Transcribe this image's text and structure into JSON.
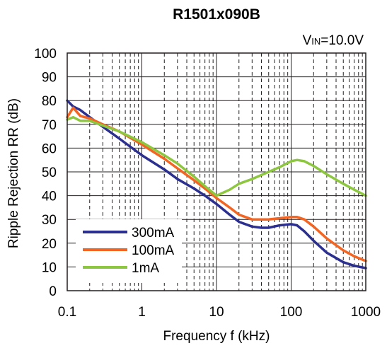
{
  "chart_data": {
    "type": "line",
    "title": "R1501x090B",
    "annotation": {
      "main": "V",
      "subscript": "IN",
      "rest": "=10.0V"
    },
    "xlabel": "Frequency f (kHz)",
    "ylabel": "Ripple Rejection RR (dB)",
    "x_scale": "log",
    "xlim": [
      0.1,
      1000
    ],
    "ylim": [
      0,
      100
    ],
    "x_ticks": [
      0.1,
      1,
      10,
      100,
      1000
    ],
    "x_tick_labels": [
      "0.1",
      "1",
      "10",
      "100",
      "1000"
    ],
    "y_ticks": [
      0,
      10,
      20,
      30,
      40,
      50,
      60,
      70,
      80,
      90,
      100
    ],
    "y_tick_labels": [
      "0",
      "10",
      "20",
      "30",
      "40",
      "50",
      "60",
      "70",
      "80",
      "90",
      "100"
    ],
    "grid": true,
    "legend_position": "bottom-left",
    "series": [
      {
        "name": "300mA",
        "color": "#2b2f8f",
        "x": [
          0.1,
          0.12,
          0.15,
          0.2,
          0.3,
          0.5,
          1,
          2,
          3,
          5,
          7,
          10,
          15,
          20,
          30,
          40,
          50,
          70,
          100,
          120,
          150,
          200,
          300,
          500,
          700,
          1000
        ],
        "y": [
          80,
          77.5,
          76,
          73,
          69,
          64,
          57,
          51,
          47,
          43,
          40,
          36.5,
          32,
          29,
          27,
          26.5,
          26.5,
          27.5,
          28,
          27.5,
          25,
          21,
          16,
          12,
          10.5,
          9.5
        ]
      },
      {
        "name": "100mA",
        "color": "#f26522",
        "x": [
          0.1,
          0.12,
          0.15,
          0.2,
          0.3,
          0.5,
          1,
          2,
          3,
          5,
          7,
          10,
          15,
          20,
          30,
          40,
          50,
          70,
          100,
          120,
          150,
          200,
          300,
          500,
          700,
          1000
        ],
        "y": [
          73,
          77,
          73.5,
          72.5,
          70,
          67,
          61.5,
          55.5,
          51.5,
          46.5,
          43,
          39,
          35,
          32,
          30,
          30,
          30,
          30.5,
          31,
          31,
          30,
          27,
          22,
          17,
          14.5,
          12.5
        ]
      },
      {
        "name": "1mA",
        "color": "#8dc63f",
        "x": [
          0.1,
          0.12,
          0.15,
          0.2,
          0.3,
          0.5,
          1,
          2,
          3,
          5,
          7,
          10,
          15,
          20,
          30,
          50,
          70,
          100,
          120,
          150,
          200,
          300,
          500,
          700,
          1000
        ],
        "y": [
          72,
          73,
          71.5,
          71.5,
          69.5,
          67,
          62.5,
          57,
          53.5,
          48,
          44,
          40,
          42.5,
          45,
          47,
          50,
          52,
          54.5,
          55,
          54.5,
          52.5,
          49,
          45,
          42.5,
          40
        ]
      }
    ]
  }
}
